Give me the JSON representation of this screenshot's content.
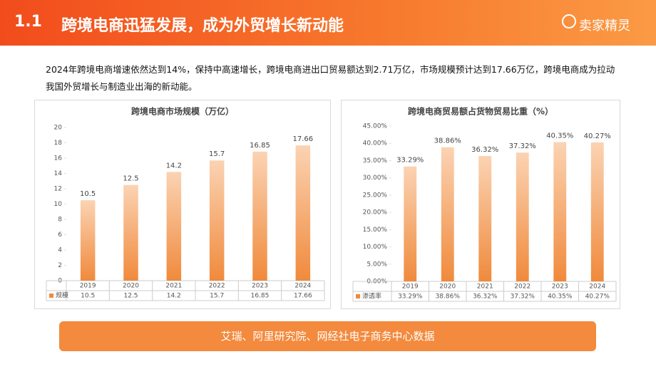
{
  "header": {
    "number": "1.1",
    "title": "跨境电商迅猛发展，成为外贸增长新动能",
    "logo": "卖家精灵"
  },
  "intro": "2024年跨境电商增速依然达到14%，保持中高速增长，跨境电商进出口贸易额达到2.71万亿，市场规模预计达到17.66万亿，跨境电商成为拉动我国外贸增长与制造业出海的新动能。",
  "chart_data": [
    {
      "type": "bar",
      "title": "跨境电商市场规模（万亿）",
      "categories": [
        "2019",
        "2020",
        "2021",
        "2022",
        "2023",
        "2024"
      ],
      "series": [
        {
          "name": "规模",
          "color": "#f08a3c",
          "values": [
            10.5,
            12.5,
            14.2,
            15.7,
            16.85,
            17.66
          ]
        }
      ],
      "ylim": [
        0,
        20
      ],
      "yticks": [
        0,
        2,
        4,
        6,
        8,
        10,
        12,
        14,
        16,
        18,
        20
      ],
      "grid": false
    },
    {
      "type": "bar",
      "title": "跨境电商贸易额占货物贸易比重（%）",
      "categories": [
        "2019",
        "2020",
        "2021",
        "2022",
        "2023",
        "2024"
      ],
      "series": [
        {
          "name": "渗透率",
          "color": "#f08a3c",
          "values": [
            33.29,
            38.86,
            36.32,
            37.32,
            40.35,
            40.27
          ],
          "value_labels": [
            "33.29%",
            "38.86%",
            "36.32%",
            "37.32%",
            "40.35%",
            "40.27%"
          ]
        }
      ],
      "ylim": [
        0,
        45
      ],
      "yticks": [
        {
          "value": 0,
          "label": "0.00%"
        },
        {
          "value": 5,
          "label": "5.00%"
        },
        {
          "value": 10,
          "label": "10.00%"
        },
        {
          "value": 15,
          "label": "15.00%"
        },
        {
          "value": 20,
          "label": "20.00%"
        },
        {
          "value": 25,
          "label": "25.00%"
        },
        {
          "value": 30,
          "label": "30.00%"
        },
        {
          "value": 35,
          "label": "35.00%"
        },
        {
          "value": 40,
          "label": "40.00%"
        },
        {
          "value": 45,
          "label": "45.00%"
        }
      ],
      "grid": false
    }
  ],
  "source": "艾瑞、阿里研究院、网经社电子商务中心数据"
}
